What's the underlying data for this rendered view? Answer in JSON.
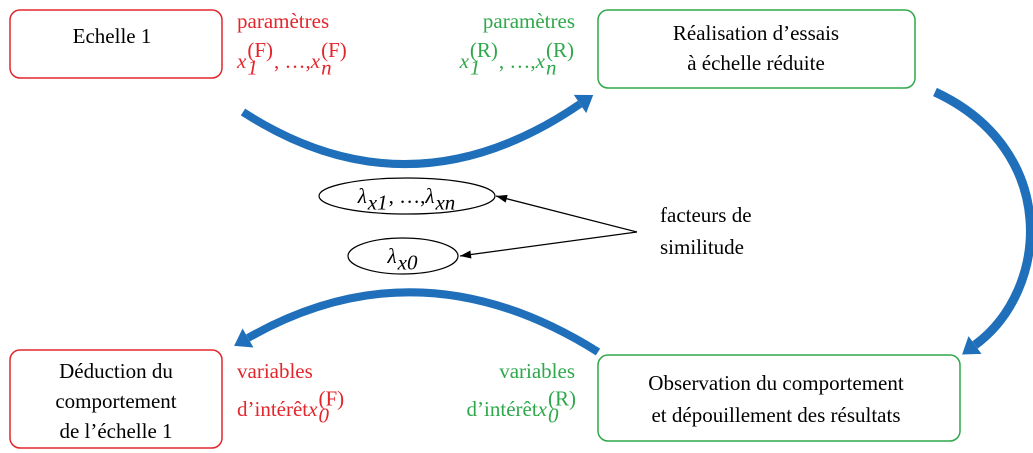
{
  "nodes": [
    {
      "lines": [
        "Echelle 1"
      ]
    },
    {
      "lines": [
        "Réalisation d’essais",
        "à échelle réduite"
      ]
    },
    {
      "lines": [
        "Observation du comportement",
        "et dépouillement des résultats"
      ]
    },
    {
      "lines": [
        "Déduction du",
        "comportement",
        "de l’échelle 1"
      ]
    }
  ],
  "annotations": {
    "params_full": {
      "label": "paramètres",
      "formula": [
        {
          "base": "x",
          "sub": "1",
          "sup": "(F)"
        },
        {
          "text": ", …, "
        },
        {
          "base": "x",
          "sub": "n",
          "sup": "(F)"
        }
      ]
    },
    "params_reduced": {
      "label": "paramètres",
      "formula": [
        {
          "base": "x",
          "sub": "1",
          "sup": "(R)"
        },
        {
          "text": ", …, "
        },
        {
          "base": "x",
          "sub": "n",
          "sup": "(R)"
        }
      ]
    },
    "vars_full": {
      "label": "variables",
      "formula": [
        {
          "text": "d’intérêt "
        },
        {
          "base": "x",
          "sub": "0",
          "sup": "(F)"
        }
      ]
    },
    "vars_reduced": {
      "label": "variables",
      "formula": [
        {
          "text": "d’intérêt "
        },
        {
          "base": "x",
          "sub": "0",
          "sup": "(R)"
        }
      ]
    }
  },
  "similitude": {
    "label": [
      "facteurs de",
      "similitude"
    ],
    "factors": [
      {
        "base": "λ",
        "sub": "x1"
      },
      {
        "text": ", …, "
      },
      {
        "base": "λ",
        "sub": "xn"
      }
    ],
    "factor0": [
      {
        "base": "λ",
        "sub": "x0"
      }
    ]
  }
}
